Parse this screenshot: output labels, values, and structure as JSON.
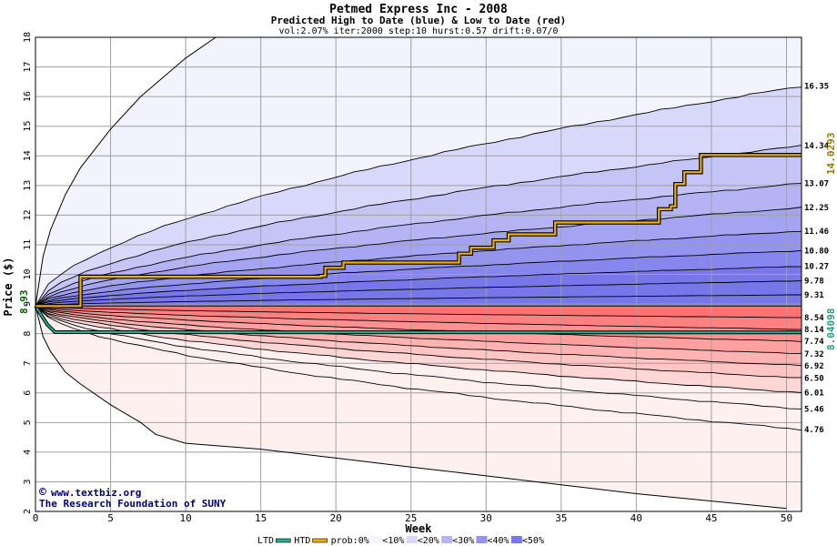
{
  "chart_data": {
    "type": "area",
    "title": "Petmed Express Inc - 2008",
    "subtitle": "Predicted High to Date (blue) &  Low to Date (red)",
    "params": "vol:2.07% iter:2000 step:10 hurst:0.57 drift:0.07/0",
    "xlabel": "Week",
    "ylabel": "Price ($)",
    "xlim": [
      0,
      51
    ],
    "ylim": [
      2,
      18
    ],
    "x_ticks": [
      0,
      5,
      10,
      15,
      20,
      25,
      30,
      35,
      40,
      45,
      50
    ],
    "y_ticks": [
      2,
      3,
      4,
      5,
      6,
      7,
      8,
      9,
      10,
      11,
      12,
      13,
      14,
      15,
      16,
      17,
      18
    ],
    "grid": true,
    "start_price": "8.93",
    "htd_end_label": "14.0293",
    "ltd_end_label": "8.04098",
    "upper_band_end_values": [
      16.35,
      14.34,
      13.07,
      12.25,
      11.46,
      10.8,
      10.27,
      9.78,
      9.31
    ],
    "upper_band_end_labels": [
      "16.35",
      "14.34",
      "13.07",
      "12.25",
      "11.46",
      "10.80",
      "10.27",
      "9.78",
      "9.31"
    ],
    "lower_band_end_values": [
      8.54,
      8.14,
      7.74,
      7.32,
      6.92,
      6.5,
      6.01,
      5.46,
      4.76
    ],
    "lower_band_end_labels": [
      "8.54",
      "8.14",
      "7.74",
      "7.32",
      "6.92",
      "6.50",
      "6.01",
      "5.46",
      "4.76"
    ],
    "upper_envelope_points": [
      [
        0,
        8.93
      ],
      [
        0.5,
        10.6
      ],
      [
        1,
        11.5
      ],
      [
        2,
        12.7
      ],
      [
        3,
        13.6
      ],
      [
        5,
        14.9
      ],
      [
        7,
        16.0
      ],
      [
        10,
        17.3
      ],
      [
        12,
        18
      ]
    ],
    "lower_envelope_points": [
      [
        0,
        8.93
      ],
      [
        0.5,
        7.9
      ],
      [
        1,
        7.4
      ],
      [
        2,
        6.7
      ],
      [
        3,
        6.3
      ],
      [
        5,
        5.6
      ],
      [
        7,
        5.0
      ],
      [
        8,
        4.6
      ],
      [
        10,
        4.3
      ],
      [
        15,
        4.1
      ],
      [
        20,
        3.8
      ],
      [
        25,
        3.5
      ],
      [
        30,
        3.2
      ],
      [
        35,
        2.9
      ],
      [
        40,
        2.6
      ],
      [
        45,
        2.35
      ],
      [
        50,
        2.1
      ]
    ],
    "series": [
      {
        "name": "HTD",
        "color": "#f0b000",
        "points": [
          [
            0,
            8.93
          ],
          [
            2.8,
            8.93
          ],
          [
            3,
            9.92
          ],
          [
            11,
            9.92
          ],
          [
            19,
            9.95
          ],
          [
            19.3,
            10.22
          ],
          [
            20.5,
            10.4
          ],
          [
            27.5,
            10.4
          ],
          [
            28.2,
            10.7
          ],
          [
            29,
            10.9
          ],
          [
            30.5,
            11.15
          ],
          [
            31.5,
            11.35
          ],
          [
            34.5,
            11.35
          ],
          [
            34.6,
            11.75
          ],
          [
            41,
            11.75
          ],
          [
            41.5,
            12.2
          ],
          [
            42.3,
            12.3
          ],
          [
            42.6,
            13.05
          ],
          [
            43.2,
            13.45
          ],
          [
            44.2,
            13.45
          ],
          [
            44.3,
            14.03
          ],
          [
            51,
            14.03
          ]
        ]
      },
      {
        "name": "LTD",
        "color": "#20b090",
        "points": [
          [
            0,
            8.93
          ],
          [
            0.8,
            8.3
          ],
          [
            1.3,
            8.05
          ],
          [
            51,
            8.04
          ]
        ]
      }
    ],
    "legend": {
      "placement": "bottom",
      "items": [
        "LTD",
        "HTD",
        "prob:0%",
        "<10%",
        "<20%",
        "<30%",
        "<40%",
        "<50%"
      ],
      "colors": [
        "#20b090",
        "#f0b000",
        "#ffffff",
        "#f3f0ff",
        "#d8d8fa",
        "#b4b4f4",
        "#9494ee",
        "#7777ea"
      ]
    },
    "credits": [
      "www.textbiz.org",
      "The Research Foundation of SUNY"
    ],
    "copyright_symbol": "©",
    "colors": {
      "blue_fills": [
        "#f3f3fe",
        "#d8d8fa",
        "#c4c4f6",
        "#b4b4f4",
        "#a4a4f2",
        "#9494ee",
        "#8686ec",
        "#7777ea"
      ],
      "red_fills": [
        "#fff0f0",
        "#ffd6d6",
        "#ffc4c4",
        "#ffb2b2",
        "#ffa0a0",
        "#ff9090",
        "#ff8080",
        "#ff7272"
      ],
      "grid": "#a0a0a0",
      "band_line": "#000000",
      "htd": "#f0b000",
      "ltd": "#20b090",
      "right_label_htd": "#9a7a00",
      "right_label_ltd": "#20a080",
      "credit_text": "#000080"
    }
  }
}
